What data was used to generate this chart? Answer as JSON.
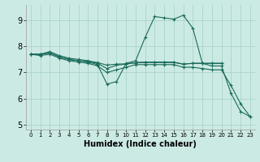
{
  "bg_color": "#cceae4",
  "line_color": "#1a6b5a",
  "grid_color": "#aad4cc",
  "xlabel": "Humidex (Indice chaleur)",
  "xlim": [
    -0.5,
    23.5
  ],
  "ylim": [
    4.8,
    9.6
  ],
  "yticks": [
    5,
    6,
    7,
    8,
    9
  ],
  "xticks": [
    0,
    1,
    2,
    3,
    4,
    5,
    6,
    7,
    8,
    9,
    10,
    11,
    12,
    13,
    14,
    15,
    16,
    17,
    18,
    19,
    20,
    21,
    22,
    23
  ],
  "series": [
    {
      "x": [
        0,
        1,
        2,
        3,
        4,
        5,
        6,
        7,
        8,
        9,
        10,
        11,
        12,
        13,
        14,
        15,
        16,
        17,
        18,
        19,
        20
      ],
      "y": [
        7.7,
        7.7,
        7.8,
        7.65,
        7.55,
        7.5,
        7.45,
        7.38,
        7.28,
        7.32,
        7.33,
        7.37,
        7.38,
        7.38,
        7.38,
        7.38,
        7.32,
        7.35,
        7.35,
        7.35,
        7.35
      ]
    },
    {
      "x": [
        0,
        1,
        2,
        3,
        4,
        5,
        6,
        7,
        8,
        9,
        10,
        11,
        12,
        13,
        14,
        15,
        16,
        17,
        18,
        19,
        20,
        21,
        22,
        23
      ],
      "y": [
        7.7,
        7.7,
        7.75,
        7.6,
        7.5,
        7.45,
        7.4,
        7.3,
        6.55,
        6.65,
        7.35,
        7.45,
        8.35,
        9.15,
        9.1,
        9.05,
        9.2,
        8.7,
        7.35,
        7.25,
        7.25,
        6.2,
        5.5,
        5.3
      ]
    },
    {
      "x": [
        0,
        1,
        2,
        3,
        4,
        5,
        6,
        7,
        8,
        9,
        10,
        11,
        12,
        13,
        14,
        15,
        16,
        17,
        18,
        19,
        20
      ],
      "y": [
        7.7,
        7.7,
        7.75,
        7.6,
        7.5,
        7.45,
        7.42,
        7.35,
        7.15,
        7.28,
        7.32,
        7.38,
        7.4,
        7.4,
        7.4,
        7.4,
        7.32,
        7.35,
        7.35,
        7.35,
        7.35
      ]
    },
    {
      "x": [
        0,
        1,
        2,
        3,
        4,
        5,
        6,
        7,
        8,
        9,
        10,
        11,
        12,
        13,
        14,
        15,
        16,
        17,
        18,
        19,
        20,
        21,
        22,
        23
      ],
      "y": [
        7.7,
        7.65,
        7.7,
        7.55,
        7.45,
        7.4,
        7.35,
        7.25,
        7.0,
        7.1,
        7.2,
        7.3,
        7.3,
        7.3,
        7.3,
        7.3,
        7.2,
        7.2,
        7.15,
        7.1,
        7.1,
        6.5,
        5.8,
        5.3
      ]
    }
  ]
}
